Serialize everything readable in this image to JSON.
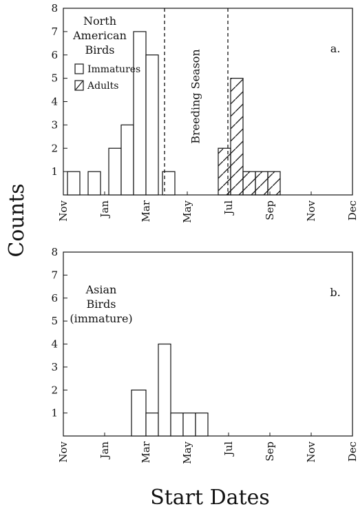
{
  "axis_titles": {
    "x": "Start Dates",
    "y": "Counts"
  },
  "chart_data": [
    {
      "type": "bar",
      "panel_label": "a.",
      "group_label": [
        "North",
        "American",
        "Birds"
      ],
      "x_tick_labels": [
        "Nov",
        "Jan",
        "Mar",
        "May",
        "Jul",
        "Sep",
        "Nov",
        "Dec"
      ],
      "ylim": [
        0,
        8
      ],
      "y_ticks": [
        1,
        2,
        3,
        4,
        5,
        6,
        7,
        8
      ],
      "annotation": "Breeding Season",
      "legend": [
        {
          "label": "Immatures",
          "pattern": "open"
        },
        {
          "label": "Adults",
          "pattern": "hatched"
        }
      ],
      "series": [
        {
          "name": "Immatures",
          "bins": [
            {
              "start": 0.1,
              "end": 0.4,
              "value": 1
            },
            {
              "start": 0.6,
              "end": 0.9,
              "value": 1
            },
            {
              "start": 1.1,
              "end": 1.4,
              "value": 2
            },
            {
              "start": 1.4,
              "end": 1.7,
              "value": 3
            },
            {
              "start": 1.7,
              "end": 2.0,
              "value": 7
            },
            {
              "start": 2.0,
              "end": 2.3,
              "value": 6
            },
            {
              "start": 2.4,
              "end": 2.7,
              "value": 1
            }
          ]
        },
        {
          "name": "Adults",
          "bins": [
            {
              "start": 3.75,
              "end": 4.05,
              "value": 2
            },
            {
              "start": 4.05,
              "end": 4.35,
              "value": 5
            },
            {
              "start": 4.35,
              "end": 4.65,
              "value": 1
            },
            {
              "start": 4.65,
              "end": 4.95,
              "value": 1
            },
            {
              "start": 4.95,
              "end": 5.25,
              "value": 1
            }
          ]
        }
      ],
      "breeding_season": {
        "start": 2.3,
        "end": 3.85
      }
    },
    {
      "type": "bar",
      "panel_label": "b.",
      "group_label": [
        "Asian",
        "Birds",
        "(immature)"
      ],
      "x_tick_labels": [
        "Nov",
        "Jan",
        "Mar",
        "May",
        "Jul",
        "Sep",
        "Nov",
        "Dec"
      ],
      "ylim": [
        0,
        8
      ],
      "y_ticks": [
        1,
        2,
        3,
        4,
        5,
        6,
        7,
        8
      ],
      "series": [
        {
          "name": "Immatures",
          "bins": [
            {
              "start": 1.65,
              "end": 2.0,
              "value": 2
            },
            {
              "start": 2.0,
              "end": 2.3,
              "value": 1
            },
            {
              "start": 2.3,
              "end": 2.6,
              "value": 4
            },
            {
              "start": 2.6,
              "end": 2.9,
              "value": 1
            },
            {
              "start": 2.9,
              "end": 3.2,
              "value": 1
            },
            {
              "start": 3.2,
              "end": 3.5,
              "value": 1
            }
          ]
        }
      ]
    }
  ]
}
